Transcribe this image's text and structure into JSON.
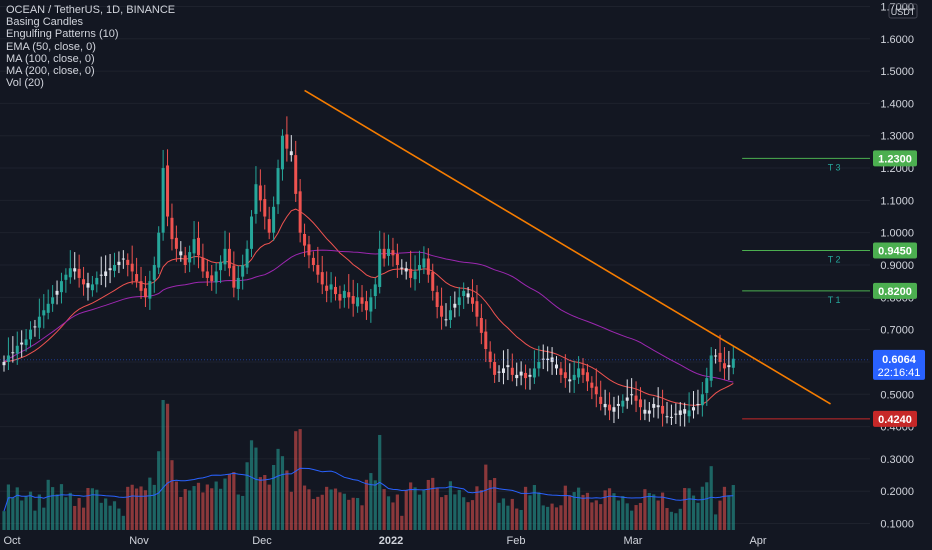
{
  "legend": {
    "symbol": "OCEAN / TetherUS, 1D, BINANCE",
    "indicators": [
      "Basing Candles",
      "Engulfing Patterns (10)",
      "EMA (50, close, 0)",
      "MA (100, close, 0)",
      "MA (200, close, 0)",
      "Vol (20)"
    ]
  },
  "currency": "USDT",
  "colors": {
    "background": "#131722",
    "up": "#26a69a",
    "down": "#ef5350",
    "basing": "#2962ff",
    "trendline": "#f57c00",
    "ema": "#ef5350",
    "ma200": "#9c27b0",
    "target": "#4caf50",
    "stop": "#c62828",
    "price_tag": "#2962ff"
  },
  "chart_data": {
    "type": "candlestick",
    "x_ticks": [
      "Oct",
      "Nov",
      "Dec",
      "2022",
      "Feb",
      "Mar",
      "Apr"
    ],
    "y_ticks": [
      "1.7000",
      "1.6000",
      "1.5000",
      "1.4000",
      "1.3000",
      "1.2000",
      "1.1000",
      "1.0000",
      "0.9000",
      "0.8000",
      "0.7000",
      "0.6000",
      "0.5000",
      "0.4000",
      "0.3000",
      "0.2000",
      "0.1000"
    ],
    "yrange": [
      0.08,
      1.72
    ],
    "start_date": "2021-09-24",
    "closes": [
      0.6,
      0.62,
      0.63,
      0.65,
      0.66,
      0.67,
      0.7,
      0.71,
      0.74,
      0.76,
      0.78,
      0.8,
      0.82,
      0.85,
      0.87,
      0.89,
      0.88,
      0.86,
      0.84,
      0.83,
      0.84,
      0.86,
      0.87,
      0.88,
      0.89,
      0.9,
      0.91,
      0.92,
      0.9,
      0.88,
      0.85,
      0.82,
      0.8,
      0.85,
      0.9,
      1.0,
      1.2,
      1.05,
      0.98,
      0.95,
      0.93,
      0.9,
      0.94,
      0.98,
      0.93,
      0.88,
      0.86,
      0.85,
      0.88,
      0.91,
      0.95,
      0.89,
      0.83,
      0.86,
      0.9,
      0.95,
      1.05,
      1.15,
      1.1,
      1.05,
      1.0,
      1.08,
      1.2,
      1.3,
      1.26,
      1.24,
      1.12,
      1.0,
      0.96,
      0.93,
      0.9,
      0.87,
      0.84,
      0.82,
      0.84,
      0.81,
      0.79,
      0.82,
      0.8,
      0.78,
      0.8,
      0.78,
      0.76,
      0.8,
      0.84,
      0.95,
      0.92,
      0.95,
      0.93,
      0.9,
      0.89,
      0.88,
      0.86,
      0.88,
      0.9,
      0.92,
      0.87,
      0.82,
      0.77,
      0.74,
      0.73,
      0.76,
      0.78,
      0.8,
      0.82,
      0.8,
      0.78,
      0.74,
      0.69,
      0.64,
      0.6,
      0.56,
      0.57,
      0.58,
      0.59,
      0.56,
      0.55,
      0.57,
      0.55,
      0.56,
      0.58,
      0.6,
      0.61,
      0.61,
      0.6,
      0.58,
      0.56,
      0.55,
      0.54,
      0.56,
      0.58,
      0.56,
      0.54,
      0.52,
      0.5,
      0.47,
      0.46,
      0.45,
      0.46,
      0.47,
      0.48,
      0.49,
      0.5,
      0.48,
      0.46,
      0.44,
      0.45,
      0.47,
      0.46,
      0.44,
      0.43,
      0.43,
      0.44,
      0.45,
      0.44,
      0.45,
      0.46,
      0.47,
      0.5,
      0.55,
      0.62,
      0.62,
      0.6,
      0.58,
      0.59,
      0.61
    ],
    "series": [
      {
        "name": "EMA (50, close, 0)"
      },
      {
        "name": "MA (100, close, 0)"
      },
      {
        "name": "MA (200, close, 0)"
      },
      {
        "name": "Vol (20)"
      }
    ],
    "levels": [
      {
        "label": "T 3",
        "price": "1.2300",
        "value": 1.23
      },
      {
        "label": "T 2",
        "price": "0.9450",
        "value": 0.945
      },
      {
        "label": "T 1",
        "price": "0.8200",
        "value": 0.82
      },
      {
        "label": "",
        "price": "0.4240",
        "value": 0.424
      }
    ],
    "current_price": "0.6064",
    "countdown": "22:16:41",
    "trendline": [
      [
        "2021-12-01",
        1.44
      ],
      [
        "2022-03-30",
        0.47
      ]
    ]
  }
}
